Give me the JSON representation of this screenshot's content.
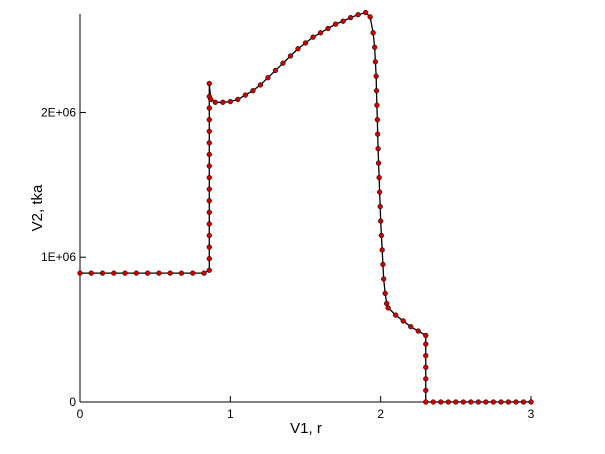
{
  "chart_data": {
    "type": "line",
    "x_label": "V1, r",
    "y_label": "V2, tka",
    "x": [
      0,
      0.075,
      0.15,
      0.225,
      0.3,
      0.375,
      0.45,
      0.525,
      0.6,
      0.675,
      0.75,
      0.825,
      0.86,
      0.86,
      0.86,
      0.86,
      0.86,
      0.86,
      0.86,
      0.86,
      0.86,
      0.86,
      0.86,
      0.86,
      0.86,
      0.86,
      0.86,
      0.86,
      0.86,
      0.87,
      0.9,
      0.95,
      1.0,
      1.05,
      1.1,
      1.15,
      1.2,
      1.25,
      1.3,
      1.35,
      1.4,
      1.45,
      1.5,
      1.55,
      1.6,
      1.65,
      1.7,
      1.75,
      1.8,
      1.85,
      1.9,
      1.93,
      1.95,
      1.96,
      1.965,
      1.97,
      1.972,
      1.975,
      1.978,
      1.98,
      1.983,
      1.986,
      1.99,
      1.993,
      1.997,
      2.0,
      2.005,
      2.01,
      2.015,
      2.02,
      2.03,
      2.04,
      2.05,
      2.1,
      2.15,
      2.2,
      2.25,
      2.3,
      2.3,
      2.3,
      2.3,
      2.3,
      2.3,
      2.3,
      2.35,
      2.4,
      2.45,
      2.5,
      2.55,
      2.6,
      2.65,
      2.7,
      2.75,
      2.8,
      2.85,
      2.9,
      2.95,
      3.0
    ],
    "series": [
      {
        "name": "V2",
        "color": "#cc0000",
        "line_color": "#000000",
        "values": [
          890000,
          890000,
          890000,
          890000,
          890000,
          890000,
          890000,
          890000,
          890000,
          890000,
          890000,
          890000,
          910000,
          990000,
          1070000,
          1150000,
          1230000,
          1310000,
          1390000,
          1470000,
          1550000,
          1630000,
          1710000,
          1790000,
          1870000,
          1950000,
          2030000,
          2110000,
          2200000,
          2090000,
          2070000,
          2070000,
          2075000,
          2090000,
          2120000,
          2150000,
          2190000,
          2240000,
          2290000,
          2340000,
          2390000,
          2440000,
          2480000,
          2520000,
          2550000,
          2580000,
          2610000,
          2630000,
          2655000,
          2675000,
          2690000,
          2660000,
          2550000,
          2450000,
          2350000,
          2250000,
          2150000,
          2050000,
          1950000,
          1850000,
          1750000,
          1650000,
          1550000,
          1450000,
          1350000,
          1250000,
          1150000,
          1050000,
          950000,
          850000,
          750000,
          680000,
          650000,
          600000,
          560000,
          520000,
          490000,
          460000,
          400000,
          320000,
          240000,
          160000,
          80000,
          0,
          0,
          0,
          0,
          0,
          0,
          0,
          0,
          0,
          0,
          0,
          0,
          0,
          0,
          0
        ]
      }
    ],
    "xlim": [
      0,
      3
    ],
    "xticks": [
      0,
      1,
      2,
      3
    ],
    "ylim": [
      0,
      2680000
    ],
    "yticks": [
      0,
      {
        "value": 1000000,
        "label": "1E+06"
      },
      {
        "value": 2000000,
        "label": "2E+06"
      }
    ]
  }
}
